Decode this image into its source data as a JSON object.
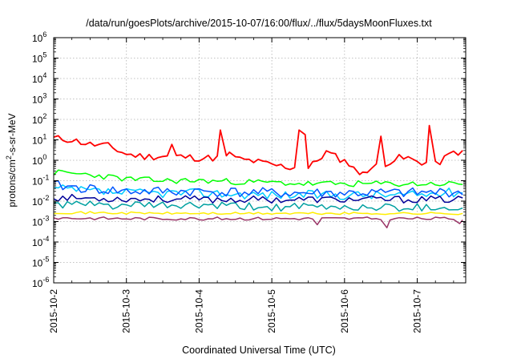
{
  "chart_data": {
    "type": "line",
    "title": "/data/run/goesPlots/archive/2015-10-07/16:00/flux/../flux/5daysMoonFluxes.txt",
    "xlabel": "Coordinated Universal Time (UTC)",
    "ylabel_parts": [
      "protons/cm",
      "2",
      "-s-sr-MeV"
    ],
    "y_scale": "log",
    "ylim": [
      1e-06,
      1000000.0
    ],
    "xlim": [
      "2015-10-02",
      "2015-10-07 16:00"
    ],
    "grid": true,
    "x_ticks": [
      "2015-10-2",
      "2015-10-3",
      "2015-10-4",
      "2015-10-5",
      "2015-10-6",
      "2015-10-7"
    ],
    "y_ticks": [
      {
        "base": "10",
        "exp": "-6"
      },
      {
        "base": "10",
        "exp": "-5"
      },
      {
        "base": "10",
        "exp": "-4"
      },
      {
        "base": "10",
        "exp": "-3"
      },
      {
        "base": "10",
        "exp": "-2"
      },
      {
        "base": "10",
        "exp": "-1"
      },
      {
        "base": "10",
        "exp": "0"
      },
      {
        "base": "10",
        "exp": "1"
      },
      {
        "base": "10",
        "exp": "2"
      },
      {
        "base": "10",
        "exp": "3"
      },
      {
        "base": "10",
        "exp": "4"
      },
      {
        "base": "10",
        "exp": "5"
      },
      {
        "base": "10",
        "exp": "6"
      }
    ],
    "series": [
      {
        "color": "#ff0000",
        "noise": 0.35,
        "seed": 11,
        "spikes": [],
        "x": [
          "2015-10-02 00:00",
          "2015-10-02 06:00",
          "2015-10-02 12:00",
          "2015-10-02 18:00",
          "2015-10-03 00:00",
          "2015-10-03 06:00",
          "2015-10-03 12:00",
          "2015-10-03 18:00",
          "2015-10-04 00:00",
          "2015-10-04 06:00",
          "2015-10-04 12:00",
          "2015-10-04 18:00",
          "2015-10-05 00:00",
          "2015-10-05 06:00",
          "2015-10-05 12:00",
          "2015-10-05 18:00",
          "2015-10-06 00:00",
          "2015-10-06 06:00",
          "2015-10-06 12:00",
          "2015-10-06 18:00",
          "2015-10-07 00:00",
          "2015-10-07 06:00",
          "2015-10-07 12:00",
          "2015-10-07 16:00"
        ],
        "y": [
          12,
          10,
          6,
          5,
          2,
          1.5,
          1.6,
          1.5,
          1.3,
          1.3,
          1.2,
          0.9,
          0.6,
          0.45,
          0.4,
          2.5,
          0.9,
          0.3,
          0.6,
          1.3,
          0.9,
          0.6,
          2.5,
          2.5
        ]
      },
      {
        "color": "#00ff00",
        "noise": 0.3,
        "seed": 23,
        "spikes": [],
        "x": [
          "2015-10-02 00:00",
          "2015-10-02 12:00",
          "2015-10-03 00:00",
          "2015-10-03 12:00",
          "2015-10-04 00:00",
          "2015-10-04 12:00",
          "2015-10-05 00:00",
          "2015-10-05 12:00",
          "2015-10-06 00:00",
          "2015-10-06 12:00",
          "2015-10-07 00:00",
          "2015-10-07 16:00"
        ],
        "y": [
          0.25,
          0.2,
          0.12,
          0.1,
          0.1,
          0.09,
          0.08,
          0.07,
          0.07,
          0.07,
          0.07,
          0.07
        ]
      },
      {
        "color": "#00ccff",
        "noise": 0.45,
        "seed": 37,
        "spikes": [],
        "x": [
          "2015-10-02 00:00",
          "2015-10-02 12:00",
          "2015-10-03 00:00",
          "2015-10-04 00:00",
          "2015-10-05 00:00",
          "2015-10-06 00:00",
          "2015-10-07 00:00",
          "2015-10-07 16:00"
        ],
        "y": [
          0.04,
          0.03,
          0.025,
          0.025,
          0.02,
          0.02,
          0.02,
          0.03
        ]
      },
      {
        "color": "#0055ff",
        "noise": 0.5,
        "seed": 41,
        "spikes": [],
        "x": [
          "2015-10-02 00:00",
          "2015-10-02 12:00",
          "2015-10-03 00:00",
          "2015-10-04 00:00",
          "2015-10-05 00:00",
          "2015-10-06 00:00",
          "2015-10-07 00:00",
          "2015-10-07 16:00"
        ],
        "y": [
          0.06,
          0.04,
          0.03,
          0.03,
          0.025,
          0.025,
          0.025,
          0.03
        ]
      },
      {
        "color": "#000099",
        "noise": 0.35,
        "seed": 53,
        "spikes": [],
        "x": [
          "2015-10-02 00:00",
          "2015-10-03 00:00",
          "2015-10-04 00:00",
          "2015-10-05 00:00",
          "2015-10-06 00:00",
          "2015-10-07 00:00",
          "2015-10-07 16:00"
        ],
        "y": [
          0.015,
          0.013,
          0.012,
          0.012,
          0.012,
          0.012,
          0.012
        ]
      },
      {
        "color": "#00a0a0",
        "noise": 0.4,
        "seed": 61,
        "spikes": [],
        "x": [
          "2015-10-02 00:00",
          "2015-10-03 00:00",
          "2015-10-04 00:00",
          "2015-10-05 00:00",
          "2015-10-06 00:00",
          "2015-10-07 00:00",
          "2015-10-07 16:00"
        ],
        "y": [
          0.007,
          0.006,
          0.006,
          0.005,
          0.005,
          0.005,
          0.005
        ]
      },
      {
        "color": "#ffee00",
        "noise": 0.12,
        "seed": 71,
        "spikes": [],
        "x": [
          "2015-10-02 00:00",
          "2015-10-03 00:00",
          "2015-10-04 00:00",
          "2015-10-05 00:00",
          "2015-10-06 00:00",
          "2015-10-07 00:00",
          "2015-10-07 16:00"
        ],
        "y": [
          0.0028,
          0.0026,
          0.0025,
          0.0025,
          0.0025,
          0.0025,
          0.0025
        ]
      },
      {
        "color": "#993366",
        "noise": 0.15,
        "seed": 83,
        "spikes": [
          [
            "2015-10-05 15:00",
            0.0007
          ],
          [
            "2015-10-06 14:00",
            0.0005
          ],
          [
            "2015-10-07 14:00",
            0.0008
          ]
        ],
        "x": [
          "2015-10-02 00:00",
          "2015-10-03 00:00",
          "2015-10-04 00:00",
          "2015-10-05 00:00",
          "2015-10-06 00:00",
          "2015-10-07 00:00",
          "2015-10-07 16:00"
        ],
        "y": [
          0.0015,
          0.0014,
          0.0014,
          0.0014,
          0.0014,
          0.0014,
          0.0014
        ]
      }
    ],
    "red_events": [
      [
        "2015-10-03 15:00",
        6
      ],
      [
        "2015-10-04 07:00",
        30
      ],
      [
        "2015-10-04 10:00",
        2.5
      ],
      [
        "2015-10-05 09:00",
        30
      ],
      [
        "2015-10-05 11:00",
        18
      ],
      [
        "2015-10-06 05:00",
        0.2
      ],
      [
        "2015-10-06 12:00",
        15
      ],
      [
        "2015-10-06 21:00",
        1.5
      ],
      [
        "2015-10-07 04:00",
        50
      ],
      [
        "2015-10-07 15:00",
        3
      ]
    ]
  }
}
